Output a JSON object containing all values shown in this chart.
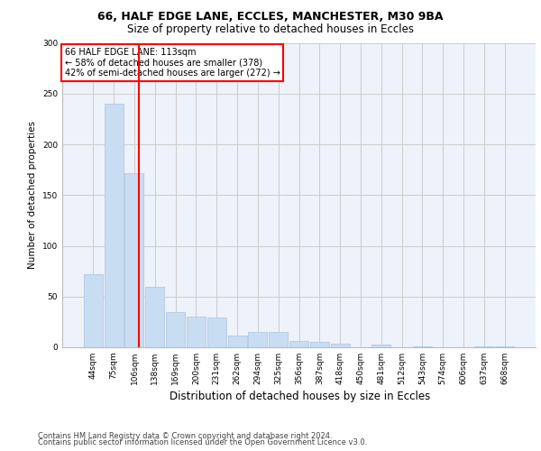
{
  "title_line1": "66, HALF EDGE LANE, ECCLES, MANCHESTER, M30 9BA",
  "title_line2": "Size of property relative to detached houses in Eccles",
  "xlabel": "Distribution of detached houses by size in Eccles",
  "ylabel": "Number of detached properties",
  "footer_line1": "Contains HM Land Registry data © Crown copyright and database right 2024.",
  "footer_line2": "Contains public sector information licensed under the Open Government Licence v3.0.",
  "annotation_title": "66 HALF EDGE LANE: 113sqm",
  "annotation_line1": "← 58% of detached houses are smaller (378)",
  "annotation_line2": "42% of semi-detached houses are larger (272) →",
  "bar_color": "#c9ddf2",
  "bar_edge_color": "#a8c4e0",
  "vline_color": "red",
  "annotation_box_color": "white",
  "annotation_box_edge": "red",
  "grid_color": "#cccccc",
  "background_color": "#eef2fa",
  "categories": [
    "44sqm",
    "75sqm",
    "106sqm",
    "138sqm",
    "169sqm",
    "200sqm",
    "231sqm",
    "262sqm",
    "294sqm",
    "325sqm",
    "356sqm",
    "387sqm",
    "418sqm",
    "450sqm",
    "481sqm",
    "512sqm",
    "543sqm",
    "574sqm",
    "606sqm",
    "637sqm",
    "668sqm"
  ],
  "values": [
    72,
    240,
    172,
    60,
    35,
    30,
    29,
    12,
    15,
    15,
    6,
    5,
    4,
    0,
    3,
    0,
    1,
    0,
    0,
    1,
    1
  ],
  "ylim": [
    0,
    300
  ],
  "yticks": [
    0,
    50,
    100,
    150,
    200,
    250,
    300
  ],
  "title_fontsize1": 9,
  "title_fontsize2": 8.5,
  "ylabel_fontsize": 7.5,
  "xlabel_fontsize": 8.5,
  "tick_fontsize": 6.5,
  "footer_fontsize": 6,
  "ann_fontsize": 7
}
